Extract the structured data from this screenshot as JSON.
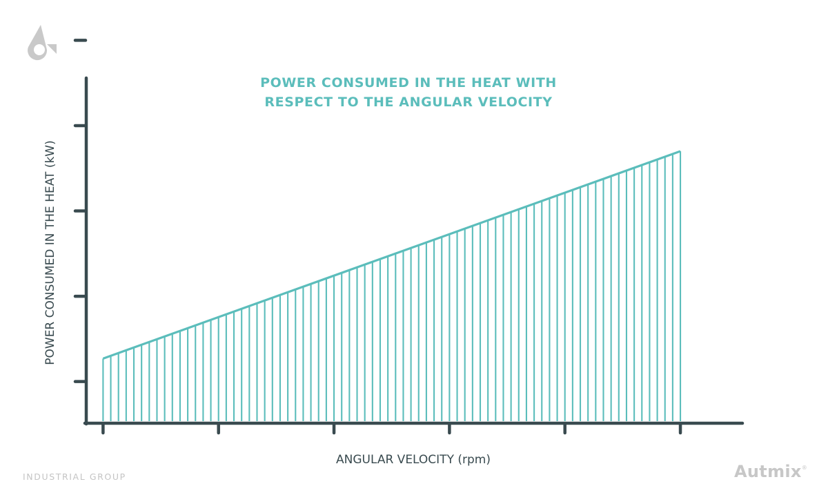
{
  "branding": {
    "logo_icon": "autmix-logo-icon",
    "tagline": "INDUSTRIAL GROUP",
    "brand_name": "Autmix",
    "registered_mark": "®"
  },
  "colors": {
    "accent": "#5bbdbb",
    "axis": "#394a4f",
    "logo": "#c9c9c9",
    "footer_text": "#c4c4c4"
  },
  "chart_data": {
    "type": "area",
    "title_lines": [
      "POWER CONSUMED IN THE HEAT WITH",
      "RESPECT TO THE ANGULAR VELOCITY"
    ],
    "xlabel": "ANGULAR VELOCITY (rpm)",
    "ylabel": "POWER CONSUMED IN THE HEAT (kW)",
    "x_tick_count": 6,
    "y_tick_count": 5,
    "tick_labels_shown": false,
    "hatch_lines": 76,
    "x": [
      0,
      1
    ],
    "y": [
      0.27,
      2.7
    ],
    "xlim": [
      -0.065,
      1.135
    ],
    "ylim": [
      -0.48,
      3.55
    ],
    "grid": false,
    "legend": "none"
  }
}
